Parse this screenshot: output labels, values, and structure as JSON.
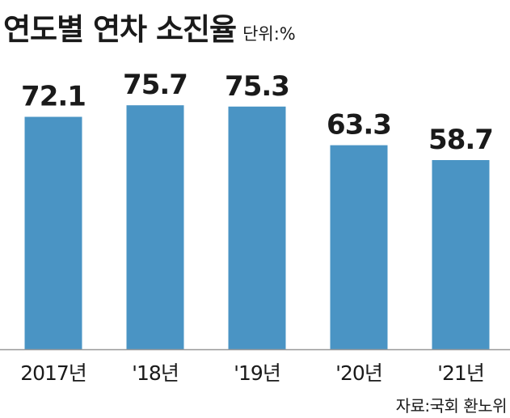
{
  "title": "연도별 연차 소진율",
  "unit": "단위:%",
  "source": "자료:국회 환노위",
  "colors": {
    "bar": "#4a94c4",
    "axis": "#999999",
    "text": "#1a1a1a"
  },
  "chart_data": {
    "type": "bar",
    "title": "연도별 연차 소진율",
    "unit": "단위:%",
    "categories": [
      "2017년",
      "'18년",
      "'19년",
      "'20년",
      "'21년"
    ],
    "values": [
      72.1,
      75.7,
      75.3,
      63.3,
      58.7
    ],
    "value_labels": [
      "72.1",
      "75.7",
      "75.3",
      "63.3",
      "58.7"
    ],
    "grid": false,
    "legend": "none"
  }
}
